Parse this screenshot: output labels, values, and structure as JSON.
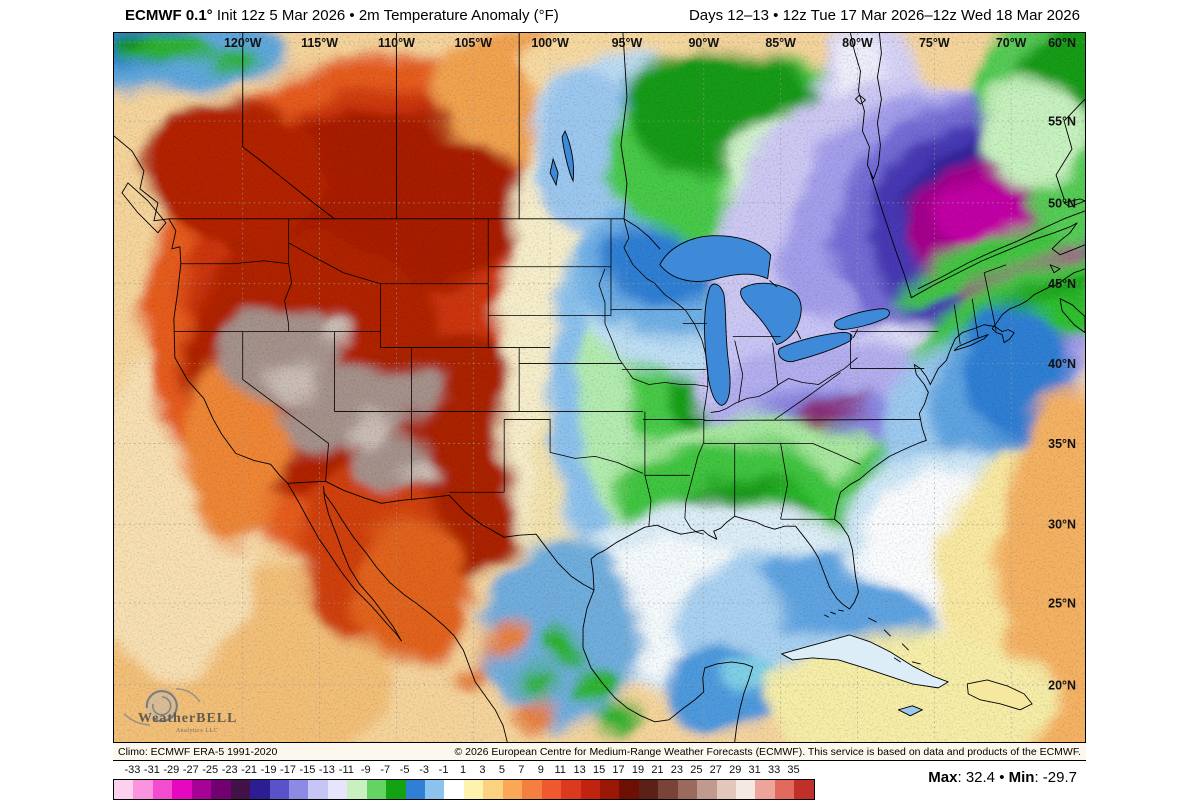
{
  "header": {
    "title_model": "ECMWF 0.1°",
    "title_rest": " Init 12z 5 Mar 2026 • 2m Temperature Anomaly (°F)",
    "right_text": "Days 12–13 • 12z Tue 17 Mar 2026–12z Wed 18 Mar 2026"
  },
  "map": {
    "lon_labels": [
      "120°W",
      "115°W",
      "110°W",
      "105°W",
      "100°W",
      "95°W",
      "90°W",
      "85°W",
      "80°W",
      "75°W",
      "70°W"
    ],
    "corner_lat_label": "60°N",
    "lat_labels": [
      "55°N",
      "50°N",
      "45°N",
      "40°N",
      "35°N",
      "30°N",
      "25°N",
      "20°N"
    ],
    "logo": {
      "text": "WeatherBELL",
      "sub": "Analytics LLC"
    }
  },
  "footer": {
    "climo": "Climo: ECMWF ERA-5 1991-2020",
    "copyright": "© 2026 European Centre for Medium-Range Weather Forecasts (ECMWF). This service is based on data and products of the ECMWF.",
    "stats": {
      "max_label": "Max",
      "max_value": "32.4",
      "separator": "•",
      "min_label": "Min",
      "min_value": "-29.7"
    }
  },
  "colorbar": {
    "tick_labels": [
      "-33",
      "-31",
      "-29",
      "-27",
      "-25",
      "-23",
      "-21",
      "-19",
      "-17",
      "-15",
      "-13",
      "-11",
      "-9",
      "-7",
      "-5",
      "-3",
      "-1",
      "1",
      "3",
      "5",
      "7",
      "9",
      "11",
      "13",
      "15",
      "17",
      "19",
      "21",
      "23",
      "25",
      "27",
      "29",
      "31",
      "33",
      "35"
    ],
    "segment_colors": [
      "#fdd0ee",
      "#fb94de",
      "#f34cce",
      "#e607c0",
      "#a80198",
      "#70016e",
      "#411148",
      "#2d1d92",
      "#5a52ca",
      "#8d8ae6",
      "#c6c5f6",
      "#e6e5fc",
      "#c9f0c0",
      "#63d463",
      "#12a312",
      "#2f80d4",
      "#8cc2ee",
      "#ffffff",
      "#fdf2ae",
      "#fbd27f",
      "#f9a858",
      "#f57f41",
      "#ee5930",
      "#dc3a1e",
      "#c02410",
      "#9a1605",
      "#6e0f03",
      "#5c2018",
      "#7a4337",
      "#9a6a5e",
      "#c09a8e",
      "#e3c6bc",
      "#f6e8e2",
      "#eda49a",
      "#e06a5e",
      "#c03028"
    ]
  },
  "chart_data": {
    "type": "heatmap",
    "title": "ECMWF 0.1° 2m Temperature Anomaly (°F)",
    "init": "12z 5 Mar 2026",
    "valid_period": "12z Tue 17 Mar 2026 – 12z Wed 18 Mar 2026",
    "forecast_days": "12–13",
    "units": "°F",
    "climatology": "ECMWF ERA-5 1991-2020",
    "max": 32.4,
    "min": -29.7,
    "colorbar_ticks": [
      -33,
      -31,
      -29,
      -27,
      -25,
      -23,
      -21,
      -19,
      -17,
      -15,
      -13,
      -11,
      -9,
      -7,
      -5,
      -3,
      -1,
      1,
      3,
      5,
      7,
      9,
      11,
      13,
      15,
      17,
      19,
      21,
      23,
      25,
      27,
      29,
      31,
      33,
      35
    ],
    "regions": [
      {
        "area": "Western US / Great Basin",
        "anomaly": "+15 to +27 °F"
      },
      {
        "area": "British Columbia / Alberta / Rockies",
        "anomaly": "+9 to +19 °F"
      },
      {
        "area": "Central Quebec",
        "anomaly": "-23 to -29 °F"
      },
      {
        "area": "Ontario / Northeast Canada",
        "anomaly": "-15 to -23 °F"
      },
      {
        "area": "Ohio Valley & Southeast interior",
        "anomaly": "-9 to -17 °F"
      },
      {
        "area": "Upper Midwest / Gulf Coast green band",
        "anomaly": "-3 to -9 °F"
      },
      {
        "area": "Central & Southern Plains",
        "anomaly": "-1 to -5 °F"
      },
      {
        "area": "Western Atlantic / Caribbean",
        "anomaly": "0 to +7 °F"
      }
    ]
  }
}
